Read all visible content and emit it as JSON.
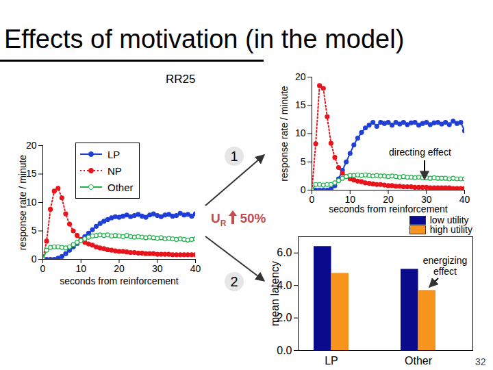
{
  "title": "Effects of motivation (in the model)",
  "page_number": "32",
  "annotations": {
    "branch_1": "1",
    "branch_2": "2",
    "manipulation": {
      "text": "U",
      "subscript": "R",
      "change": "50%"
    }
  },
  "chart_data": [
    {
      "type": "line",
      "title": "RR25",
      "xlabel": "seconds from reinforcement",
      "ylabel": "response rate / minute",
      "xlim": [
        0,
        40
      ],
      "xticks": [
        0,
        10,
        20,
        30,
        40
      ],
      "ylim": [
        0,
        20
      ],
      "yticks": [
        0,
        5,
        10,
        15,
        20
      ],
      "legend": "top-left",
      "x": [
        0,
        1,
        2,
        3,
        4,
        5,
        6,
        7,
        8,
        9,
        10,
        11,
        12,
        13,
        14,
        15,
        16,
        17,
        18,
        19,
        20,
        21,
        22,
        23,
        24,
        25,
        26,
        27,
        28,
        29,
        30,
        31,
        32,
        33,
        34,
        35,
        36,
        37,
        38,
        39,
        40
      ],
      "series": [
        {
          "name": "LP",
          "color": "#1f3fd6",
          "marker": "circle",
          "line_style": "solid",
          "values": [
            0,
            0,
            0,
            0,
            0.2,
            0.5,
            1,
            1.6,
            2.2,
            2.8,
            3.4,
            4,
            4.6,
            5.2,
            5.8,
            6.3,
            6.7,
            7,
            7.3,
            7.5,
            7.4,
            7.6,
            7.8,
            7.5,
            7.7,
            7.9,
            7.6,
            7.4,
            7.8,
            8,
            7.7,
            7.5,
            7.8,
            7.9,
            7.6,
            7.7,
            8.1,
            7.8,
            7.9,
            7.6,
            8
          ]
        },
        {
          "name": "NP",
          "color": "#e8141b",
          "marker": "circle",
          "line_style": "dotted",
          "values": [
            0,
            3.2,
            8.8,
            12,
            12.5,
            10.8,
            8,
            6.2,
            5,
            4.2,
            3.5,
            3,
            2.7,
            2.5,
            2.2,
            2,
            1.9,
            1.7,
            1.6,
            1.5,
            1.4,
            1.4,
            1.3,
            1.2,
            1.2,
            1.1,
            1.1,
            1,
            1,
            1,
            0.9,
            0.9,
            0.9,
            0.9,
            0.8,
            0.8,
            0.8,
            0.8,
            0.8,
            0.8,
            0.8
          ]
        },
        {
          "name": "Other",
          "color": "#22b14c",
          "marker": "open circle",
          "line_style": "solid",
          "values": [
            0,
            1.6,
            2.1,
            2.2,
            2.2,
            2.1,
            2,
            2.2,
            2.6,
            3,
            3.3,
            3.6,
            3.9,
            4.1,
            4.2,
            4.3,
            4.2,
            4.3,
            4.1,
            4.2,
            4.1,
            4,
            4.2,
            4,
            3.9,
            4,
            3.9,
            3.8,
            3.9,
            3.8,
            3.7,
            3.8,
            3.6,
            3.7,
            3.6,
            3.5,
            3.6,
            3.5,
            3.4,
            3.5,
            3.6
          ]
        }
      ]
    },
    {
      "type": "line",
      "annotation": "directing effect",
      "xlabel": "seconds from reinforcement",
      "ylabel": "response rate / minute",
      "xlim": [
        0,
        40
      ],
      "xticks": [
        0,
        10,
        20,
        30,
        40
      ],
      "ylim": [
        0,
        20
      ],
      "yticks": [
        0,
        5,
        10,
        15,
        20
      ],
      "x": [
        0,
        1,
        2,
        3,
        4,
        5,
        6,
        7,
        8,
        9,
        10,
        11,
        12,
        13,
        14,
        15,
        16,
        17,
        18,
        19,
        20,
        21,
        22,
        23,
        24,
        25,
        26,
        27,
        28,
        29,
        30,
        31,
        32,
        33,
        34,
        35,
        36,
        37,
        38,
        39,
        40
      ],
      "series": [
        {
          "name": "LP",
          "color": "#1f3fd6",
          "marker": "circle",
          "line_style": "solid",
          "values": [
            0,
            0,
            0,
            0,
            0,
            0.2,
            0.8,
            2,
            3.5,
            5,
            6.5,
            8,
            9.2,
            10.2,
            11,
            11.5,
            12,
            11.3,
            12,
            11.8,
            12,
            11.5,
            12,
            11.7,
            12,
            11.6,
            11.9,
            12,
            11.5,
            11.8,
            12,
            11.6,
            11.9,
            12,
            11.7,
            12,
            11.6,
            12.2,
            11.8,
            12,
            10.5
          ]
        },
        {
          "name": "NP",
          "color": "#e8141b",
          "marker": "circle",
          "line_style": "dotted",
          "values": [
            0,
            8.2,
            18.5,
            18,
            13,
            8.3,
            5.8,
            4,
            3,
            2.4,
            2,
            1.8,
            1.6,
            1.5,
            1.3,
            1.2,
            1.1,
            1,
            1,
            0.9,
            0.8,
            0.8,
            0.7,
            0.7,
            0.6,
            0.6,
            0.6,
            0.5,
            0.5,
            0.5,
            0.5,
            0.4,
            0.4,
            0.4,
            0.4,
            0.4,
            0.4,
            0.3,
            0.3,
            0.3,
            0.3
          ]
        },
        {
          "name": "Other",
          "color": "#22b14c",
          "marker": "open circle",
          "line_style": "solid",
          "values": [
            0,
            1,
            1,
            0.9,
            1,
            1,
            1.3,
            1.7,
            2.1,
            2.4,
            2.6,
            2.6,
            2.7,
            2.6,
            2.7,
            2.6,
            2.5,
            2.6,
            2.5,
            2.5,
            2.4,
            2.5,
            2.4,
            2.3,
            2.4,
            2.3,
            2.3,
            2.2,
            2.3,
            2.2,
            2.2,
            2.1,
            2.2,
            2.1,
            2.1,
            2.1,
            2,
            2.1,
            2,
            2,
            2
          ]
        }
      ]
    },
    {
      "type": "bar",
      "annotation": "energizing effect",
      "ylabel": "mean latency",
      "ylim": [
        0,
        7
      ],
      "yticks": [
        0,
        2,
        4,
        6
      ],
      "legend": "top-right",
      "categories": [
        "LP",
        "Other"
      ],
      "series": [
        {
          "name": "low utility",
          "color": "#0a0a8c",
          "values": [
            6.4,
            5.0
          ]
        },
        {
          "name": "high utility",
          "color": "#f7941d",
          "values": [
            4.75,
            3.7
          ]
        }
      ]
    }
  ]
}
